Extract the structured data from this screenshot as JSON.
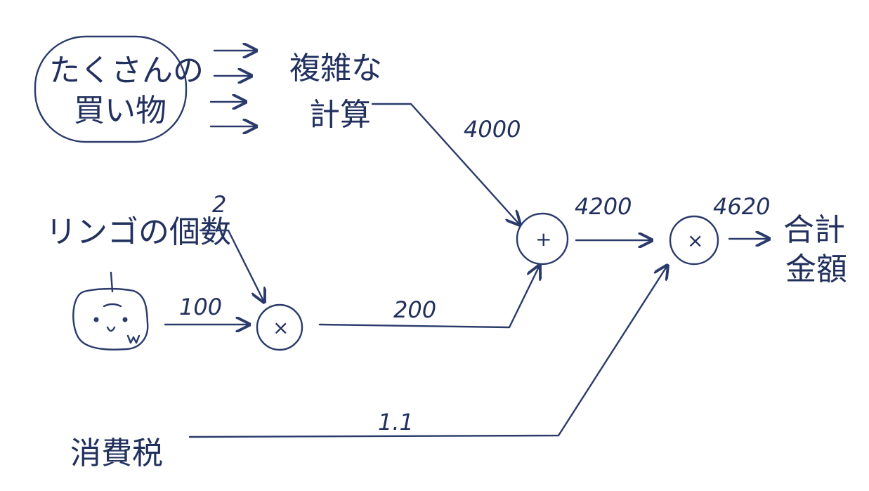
{
  "labels": {
    "shopping": "たくさんの買い物",
    "shopping_line1": "たくさんの",
    "shopping_line2": "買い物",
    "complex_calc": "複雑な計算",
    "complex_line1": "複雑な",
    "complex_line2": "計算",
    "apple_count": "リンゴの個数",
    "tax": "消費税",
    "total": "合計金額",
    "total_line1": "合計",
    "total_line2": "金額"
  },
  "values": {
    "complex_to_add": "4000",
    "apple_count_value": "2",
    "apple_price": "100",
    "apple_subtotal": "200",
    "add_result": "4200",
    "tax_rate": "1.1",
    "final_total": "4620"
  },
  "nodes": {
    "multiply_apple": "×",
    "add": "+",
    "multiply_tax": "×"
  },
  "colors": {
    "ink": "#2a3a6a",
    "paper": "#ffffff"
  }
}
